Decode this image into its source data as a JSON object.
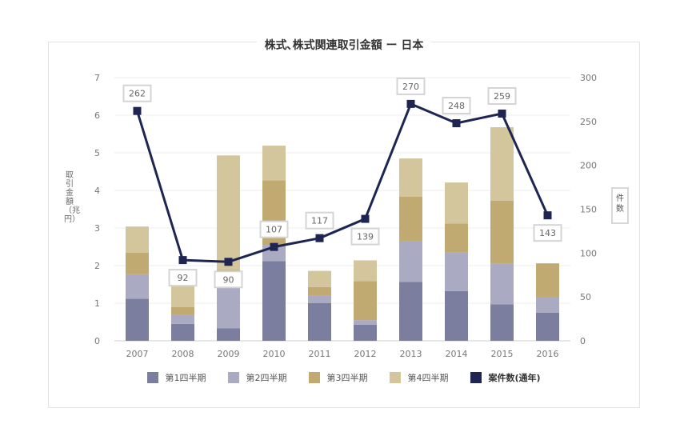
{
  "chart_data": {
    "type": "bar",
    "title": "株式､株式関連取引金額 ー 日本",
    "categories": [
      "2007",
      "2008",
      "2009",
      "2010",
      "2011",
      "2012",
      "2013",
      "2014",
      "2015",
      "2016"
    ],
    "series": [
      {
        "name": "第1四半期",
        "color": "#7b7e9e",
        "values": [
          1.12,
          0.45,
          0.33,
          2.12,
          1.0,
          0.43,
          1.57,
          1.32,
          0.97,
          0.75
        ]
      },
      {
        "name": "第2四半期",
        "color": "#aaaac2",
        "values": [
          0.65,
          0.25,
          1.39,
          0.43,
          0.2,
          0.12,
          1.08,
          1.04,
          1.08,
          0.42
        ]
      },
      {
        "name": "第3四半期",
        "color": "#c0aa72",
        "values": [
          0.57,
          0.2,
          0.17,
          1.72,
          0.23,
          1.04,
          1.18,
          0.76,
          1.68,
          0.89
        ]
      },
      {
        "name": "第4四半期",
        "color": "#d3c59c",
        "values": [
          0.7,
          0.65,
          3.04,
          0.92,
          0.43,
          0.55,
          1.02,
          1.09,
          1.95,
          0.0
        ]
      }
    ],
    "line": {
      "name": "案件数(通年)",
      "color": "#1f2552",
      "values": [
        262,
        92,
        90,
        107,
        117,
        139,
        270,
        248,
        259,
        143
      ]
    },
    "y_left": {
      "label": "取引金額（兆円）",
      "range": [
        0,
        7
      ],
      "ticks": [
        "0",
        "1",
        "2",
        "3",
        "4",
        "5",
        "6",
        "7"
      ]
    },
    "y_right": {
      "label": "件数",
      "range": [
        0,
        300
      ],
      "ticks": [
        "0",
        "50",
        "100",
        "150",
        "200",
        "250",
        "300"
      ]
    },
    "grid": true,
    "legend_position": "bottom"
  }
}
